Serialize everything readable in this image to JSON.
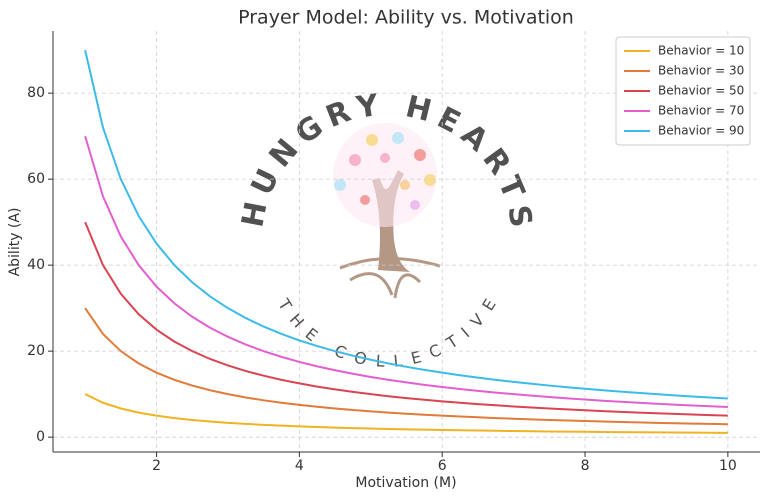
{
  "chart_data": {
    "type": "line",
    "title": "Prayer Model: Ability vs. Motivation",
    "x_label": "Motivation (M)",
    "y_label": "Ability (A)",
    "x": [
      1,
      1.25,
      1.5,
      1.75,
      2,
      2.25,
      2.5,
      2.75,
      3,
      3.25,
      3.5,
      3.75,
      4,
      4.25,
      4.5,
      4.75,
      5,
      5.25,
      5.5,
      5.75,
      6,
      6.25,
      6.5,
      6.75,
      7,
      7.25,
      7.5,
      7.75,
      8,
      8.25,
      8.5,
      8.75,
      9,
      9.25,
      9.5,
      9.75,
      10
    ],
    "series": [
      {
        "name": "Behavior = 10",
        "color": "#f0b323",
        "values": [
          10,
          8,
          6.67,
          5.71,
          5,
          4.44,
          4,
          3.64,
          3.33,
          3.08,
          2.86,
          2.67,
          2.5,
          2.35,
          2.22,
          2.11,
          2,
          1.9,
          1.82,
          1.74,
          1.67,
          1.6,
          1.54,
          1.48,
          1.43,
          1.38,
          1.33,
          1.29,
          1.25,
          1.21,
          1.18,
          1.14,
          1.11,
          1.08,
          1.05,
          1.03,
          1
        ]
      },
      {
        "name": "Behavior = 30",
        "color": "#e07b39",
        "values": [
          30,
          24,
          20,
          17.14,
          15,
          13.33,
          12,
          10.91,
          10,
          9.23,
          8.57,
          8,
          7.5,
          7.06,
          6.67,
          6.32,
          6,
          5.71,
          5.45,
          5.22,
          5,
          4.8,
          4.62,
          4.44,
          4.29,
          4.14,
          4,
          3.87,
          3.75,
          3.64,
          3.53,
          3.43,
          3.33,
          3.24,
          3.16,
          3.08,
          3
        ]
      },
      {
        "name": "Behavior = 50",
        "color": "#d94452",
        "values": [
          50,
          40,
          33.33,
          28.57,
          25,
          22.22,
          20,
          18.18,
          16.67,
          15.38,
          14.29,
          13.33,
          12.5,
          11.76,
          11.11,
          10.53,
          10,
          9.52,
          9.09,
          8.7,
          8.33,
          8,
          7.69,
          7.41,
          7.14,
          6.9,
          6.67,
          6.45,
          6.25,
          6.06,
          5.88,
          5.71,
          5.56,
          5.41,
          5.26,
          5.13,
          5
        ]
      },
      {
        "name": "Behavior = 70",
        "color": "#e35fcf",
        "values": [
          70,
          56,
          46.67,
          40,
          35,
          31.11,
          28,
          25.45,
          23.33,
          21.54,
          20,
          18.67,
          17.5,
          16.47,
          15.56,
          14.74,
          14,
          13.33,
          12.73,
          12.17,
          11.67,
          11.2,
          10.77,
          10.37,
          10,
          9.66,
          9.33,
          9.03,
          8.75,
          8.48,
          8.24,
          8,
          7.78,
          7.57,
          7.37,
          7.18,
          7
        ]
      },
      {
        "name": "Behavior = 90",
        "color": "#3cbbe8",
        "values": [
          90,
          72,
          60,
          51.43,
          45,
          40,
          36,
          32.73,
          30,
          27.69,
          25.71,
          24,
          22.5,
          21.18,
          20,
          18.95,
          18,
          17.14,
          16.36,
          15.65,
          15,
          14.4,
          13.85,
          13.33,
          12.86,
          12.41,
          12,
          11.61,
          11.25,
          10.91,
          10.59,
          10.29,
          10,
          9.73,
          9.47,
          9.23,
          9
        ]
      }
    ],
    "xlim": [
      0.55,
      10.45
    ],
    "ylim": [
      -3.45,
      94.45
    ],
    "xticks": [
      2,
      4,
      6,
      8,
      10
    ],
    "yticks": [
      0,
      20,
      40,
      60,
      80
    ],
    "grid": true,
    "legend": "upper right",
    "watermark": {
      "title": "HUNGRY HEARTS",
      "subtitle": "THE COLLECTIVE"
    }
  }
}
